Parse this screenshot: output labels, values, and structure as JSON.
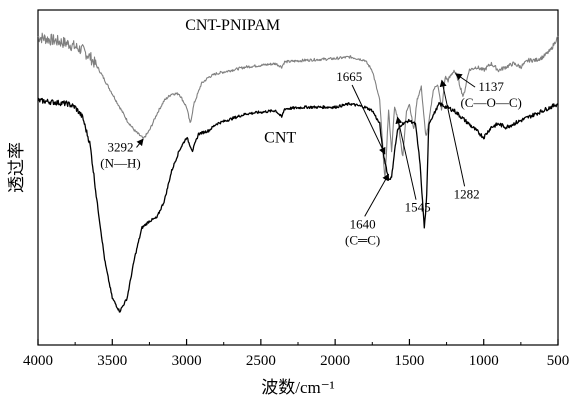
{
  "chart_data": {
    "type": "line",
    "xlabel": "波数/cm⁻¹",
    "ylabel": "透过率",
    "xlim": [
      4000,
      500
    ],
    "x_ticks": [
      4000,
      3500,
      3000,
      2500,
      2000,
      1500,
      1000,
      500
    ],
    "x_tick_labels": [
      "4000",
      "3500",
      "3000",
      "2500",
      "2000",
      "1500",
      "1000",
      "500"
    ],
    "y_ticks_shown": false,
    "grid": false,
    "series": [
      {
        "name": "CNT-PNIPAM",
        "color": "#808080",
        "points": [
          [
            4000,
            0.92
          ],
          [
            3900,
            0.91
          ],
          [
            3800,
            0.9
          ],
          [
            3750,
            0.89
          ],
          [
            3700,
            0.88
          ],
          [
            3650,
            0.86
          ],
          [
            3600,
            0.83
          ],
          [
            3550,
            0.79
          ],
          [
            3500,
            0.75
          ],
          [
            3450,
            0.71
          ],
          [
            3400,
            0.67
          ],
          [
            3350,
            0.64
          ],
          [
            3300,
            0.62
          ],
          [
            3292,
            0.615
          ],
          [
            3250,
            0.64
          ],
          [
            3200,
            0.69
          ],
          [
            3150,
            0.73
          ],
          [
            3100,
            0.75
          ],
          [
            3050,
            0.75
          ],
          [
            3000,
            0.71
          ],
          [
            2975,
            0.66
          ],
          [
            2950,
            0.72
          ],
          [
            2900,
            0.78
          ],
          [
            2850,
            0.8
          ],
          [
            2800,
            0.81
          ],
          [
            2600,
            0.83
          ],
          [
            2400,
            0.84
          ],
          [
            2360,
            0.83
          ],
          [
            2340,
            0.845
          ],
          [
            2200,
            0.85
          ],
          [
            2000,
            0.855
          ],
          [
            1900,
            0.86
          ],
          [
            1800,
            0.85
          ],
          [
            1750,
            0.82
          ],
          [
            1700,
            0.73
          ],
          [
            1665,
            0.49
          ],
          [
            1640,
            0.7
          ],
          [
            1620,
            0.58
          ],
          [
            1600,
            0.71
          ],
          [
            1580,
            0.68
          ],
          [
            1545,
            0.56
          ],
          [
            1520,
            0.7
          ],
          [
            1500,
            0.72
          ],
          [
            1470,
            0.64
          ],
          [
            1450,
            0.73
          ],
          [
            1420,
            0.77
          ],
          [
            1390,
            0.62
          ],
          [
            1370,
            0.66
          ],
          [
            1340,
            0.76
          ],
          [
            1310,
            0.78
          ],
          [
            1282,
            0.7
          ],
          [
            1260,
            0.8
          ],
          [
            1240,
            0.79
          ],
          [
            1200,
            0.82
          ],
          [
            1170,
            0.79
          ],
          [
            1137,
            0.74
          ],
          [
            1100,
            0.82
          ],
          [
            1050,
            0.83
          ],
          [
            1000,
            0.82
          ],
          [
            950,
            0.84
          ],
          [
            900,
            0.82
          ],
          [
            850,
            0.83
          ],
          [
            800,
            0.84
          ],
          [
            750,
            0.83
          ],
          [
            700,
            0.85
          ],
          [
            650,
            0.85
          ],
          [
            600,
            0.86
          ],
          [
            550,
            0.88
          ],
          [
            500,
            0.92
          ]
        ]
      },
      {
        "name": "CNT",
        "color": "#000000",
        "points": [
          [
            4000,
            0.73
          ],
          [
            3900,
            0.725
          ],
          [
            3800,
            0.72
          ],
          [
            3750,
            0.71
          ],
          [
            3700,
            0.68
          ],
          [
            3650,
            0.6
          ],
          [
            3600,
            0.42
          ],
          [
            3550,
            0.25
          ],
          [
            3500,
            0.14
          ],
          [
            3450,
            0.1
          ],
          [
            3400,
            0.14
          ],
          [
            3350,
            0.26
          ],
          [
            3300,
            0.35
          ],
          [
            3250,
            0.37
          ],
          [
            3200,
            0.38
          ],
          [
            3150,
            0.43
          ],
          [
            3100,
            0.52
          ],
          [
            3050,
            0.58
          ],
          [
            3000,
            0.62
          ],
          [
            2960,
            0.58
          ],
          [
            2920,
            0.63
          ],
          [
            2850,
            0.64
          ],
          [
            2800,
            0.66
          ],
          [
            2600,
            0.69
          ],
          [
            2400,
            0.7
          ],
          [
            2360,
            0.68
          ],
          [
            2340,
            0.705
          ],
          [
            2200,
            0.71
          ],
          [
            2000,
            0.71
          ],
          [
            1900,
            0.72
          ],
          [
            1800,
            0.71
          ],
          [
            1750,
            0.7
          ],
          [
            1700,
            0.66
          ],
          [
            1680,
            0.58
          ],
          [
            1640,
            0.495
          ],
          [
            1620,
            0.5
          ],
          [
            1600,
            0.58
          ],
          [
            1580,
            0.64
          ],
          [
            1550,
            0.66
          ],
          [
            1500,
            0.67
          ],
          [
            1460,
            0.66
          ],
          [
            1430,
            0.55
          ],
          [
            1400,
            0.35
          ],
          [
            1385,
            0.43
          ],
          [
            1370,
            0.66
          ],
          [
            1300,
            0.72
          ],
          [
            1250,
            0.71
          ],
          [
            1200,
            0.7
          ],
          [
            1150,
            0.68
          ],
          [
            1100,
            0.66
          ],
          [
            1050,
            0.64
          ],
          [
            1000,
            0.62
          ],
          [
            950,
            0.65
          ],
          [
            900,
            0.66
          ],
          [
            850,
            0.65
          ],
          [
            800,
            0.66
          ],
          [
            750,
            0.67
          ],
          [
            700,
            0.68
          ],
          [
            650,
            0.69
          ],
          [
            600,
            0.7
          ],
          [
            550,
            0.71
          ],
          [
            500,
            0.72
          ]
        ]
      }
    ],
    "labels": [
      {
        "text": "CNT-PNIPAM",
        "x": 2690,
        "y": 0.955
      },
      {
        "text": "CNT",
        "x": 2370,
        "y": 0.62
      }
    ],
    "annotations": [
      {
        "text": "1665",
        "point": [
          1665,
          0.57
        ],
        "text_at": [
          1905,
          0.8
        ],
        "arrow": true
      },
      {
        "text": "3292",
        "second": "(N—H)",
        "point": [
          3292,
          0.615
        ],
        "text_at": [
          3445,
          0.59
        ],
        "arrow": true
      },
      {
        "text": "1137",
        "second": "(C—O—C)",
        "point": [
          1190,
          0.81
        ],
        "text_at": [
          950,
          0.77
        ],
        "arrow": true
      },
      {
        "text": "1640",
        "second": "(C═C)",
        "point": [
          1640,
          0.51
        ],
        "text_at": [
          1815,
          0.36
        ],
        "arrow": true
      },
      {
        "text": "1545",
        "point": [
          1580,
          0.68
        ],
        "text_at": [
          1445,
          0.41
        ],
        "arrow": true
      },
      {
        "text": "1282",
        "point": [
          1282,
          0.79
        ],
        "text_at": [
          1115,
          0.45
        ],
        "arrow": true
      }
    ]
  }
}
